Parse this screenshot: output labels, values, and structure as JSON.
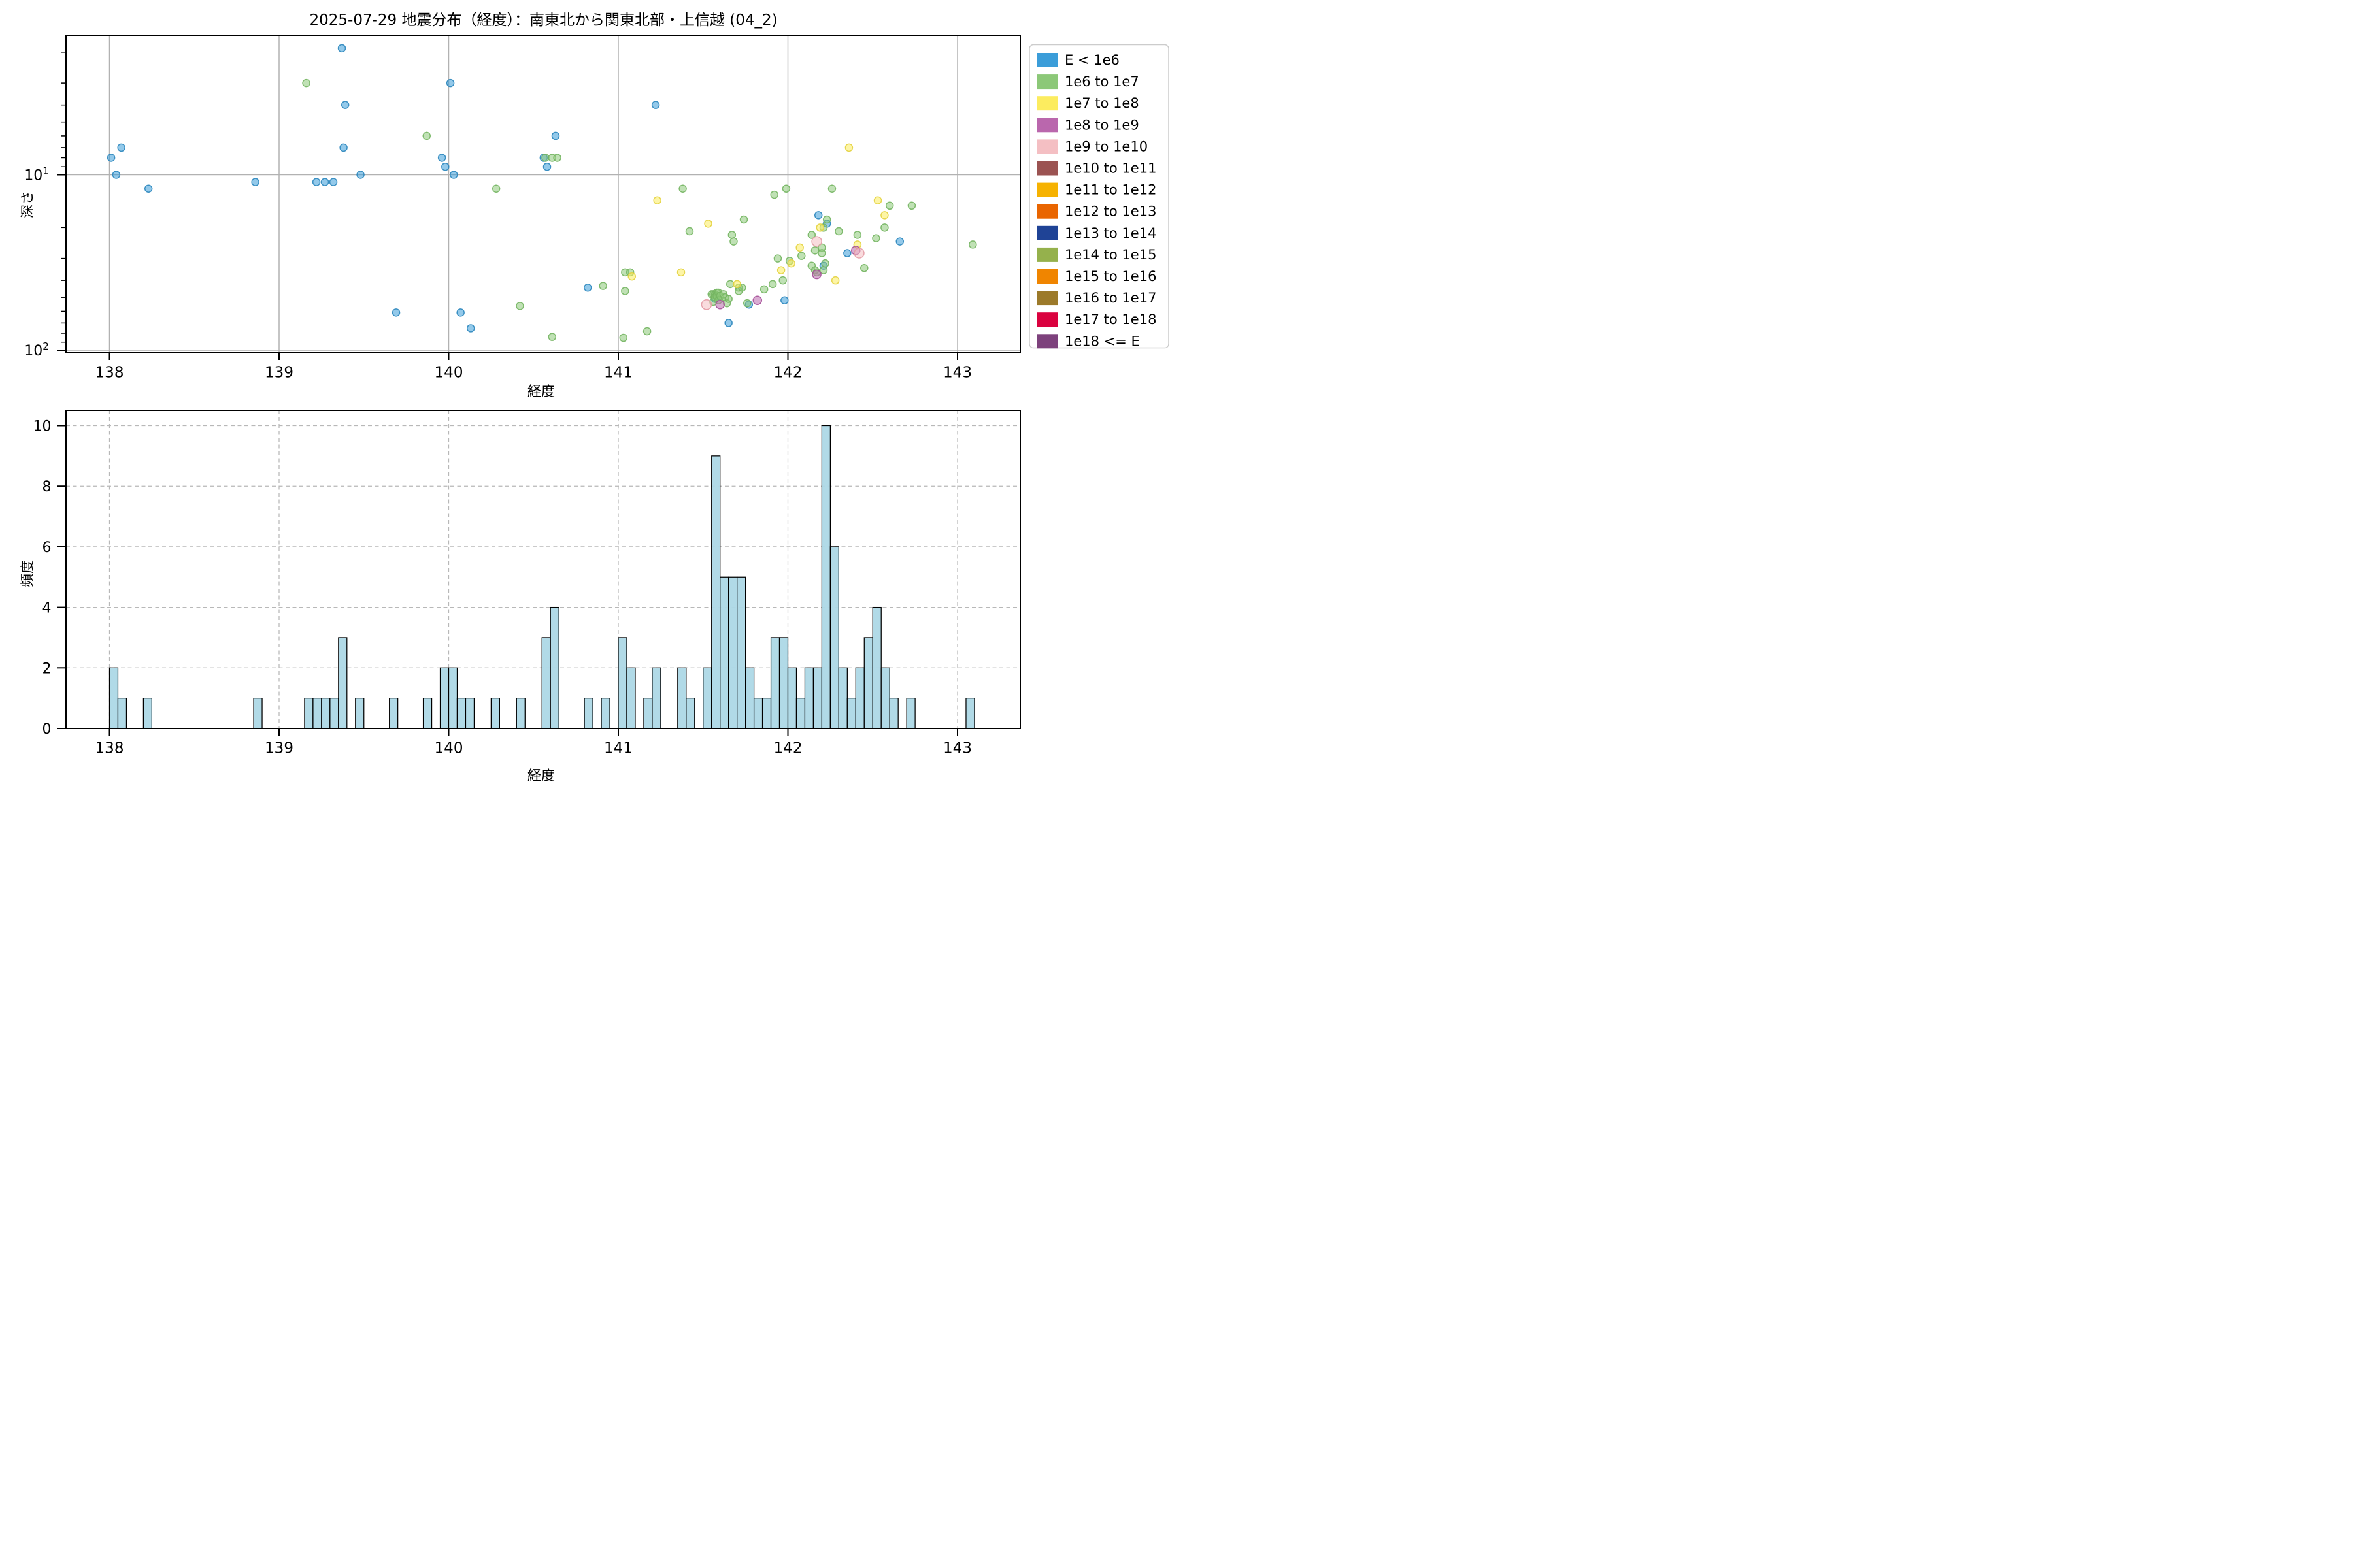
{
  "figure": {
    "title": "2025-07-29 地震分布（経度）：南東北から関東北部・上信越 (04_2)",
    "background": "#ffffff"
  },
  "axes_labels": {
    "longitude": "経度",
    "depth": "深さ",
    "frequency": "頻度"
  },
  "legend": {
    "items": [
      {
        "label": "E < 1e6",
        "color": "#3B9DD9"
      },
      {
        "label": "1e6 to 1e7",
        "color": "#8CC878"
      },
      {
        "label": "1e7 to 1e8",
        "color": "#FCEC5F"
      },
      {
        "label": "1e8 to 1e9",
        "color": "#BA67AD"
      },
      {
        "label": "1e9 to 1e10",
        "color": "#F4BFC3"
      },
      {
        "label": "1e10 to 1e11",
        "color": "#9B5352"
      },
      {
        "label": "1e11 to 1e12",
        "color": "#F6B201"
      },
      {
        "label": "1e12 to 1e13",
        "color": "#E96500"
      },
      {
        "label": "1e13 to 1e14",
        "color": "#1F4396"
      },
      {
        "label": "1e14 to 1e15",
        "color": "#95B14C"
      },
      {
        "label": "1e15 to 1e16",
        "color": "#F08500"
      },
      {
        "label": "1e16 to 1e17",
        "color": "#9C7A2A"
      },
      {
        "label": "1e17 to 1e18",
        "color": "#DA023F"
      },
      {
        "label": "1e18 <= E",
        "color": "#7D417C"
      }
    ]
  },
  "chart_data": [
    {
      "type": "scatter",
      "xlabel": "経度",
      "ylabel": "深さ",
      "x_ticks": [
        138,
        139,
        140,
        141,
        142,
        143
      ],
      "xlim": [
        137.74,
        143.37
      ],
      "y_scale": "log-inverted",
      "ylim_depth": [
        1.6,
        104
      ],
      "y_major_ticks": [
        {
          "base": "10",
          "sup": "1",
          "value": 10
        },
        {
          "base": "10",
          "sup": "2",
          "value": 100
        }
      ],
      "y_minor_ticks": [
        2,
        3,
        4,
        5,
        6,
        7,
        8,
        9,
        20,
        30,
        40,
        50,
        60,
        70,
        80,
        90
      ],
      "grid": "solid",
      "legend_position": "upper right outside",
      "series": [
        {
          "name": "E < 1e6",
          "color": "#3B9DD9",
          "edge": "#2B86BC",
          "r": 11,
          "points": [
            [
              138.01,
              8
            ],
            [
              138.04,
              10
            ],
            [
              138.07,
              7
            ],
            [
              138.23,
              12
            ],
            [
              138.86,
              11
            ],
            [
              139.22,
              11
            ],
            [
              139.27,
              11
            ],
            [
              139.32,
              11
            ],
            [
              139.37,
              1.9
            ],
            [
              139.38,
              7
            ],
            [
              139.39,
              4
            ],
            [
              139.48,
              10
            ],
            [
              139.69,
              61
            ],
            [
              139.96,
              8
            ],
            [
              139.98,
              9
            ],
            [
              140.01,
              3
            ],
            [
              140.03,
              10
            ],
            [
              140.07,
              61
            ],
            [
              140.13,
              75
            ],
            [
              140.56,
              8
            ],
            [
              140.58,
              9
            ],
            [
              140.63,
              6
            ],
            [
              140.82,
              44
            ],
            [
              141.22,
              4
            ],
            [
              141.57,
              51
            ],
            [
              141.65,
              70
            ],
            [
              141.77,
              55
            ],
            [
              141.98,
              52
            ],
            [
              142.18,
              17
            ],
            [
              142.21,
              33
            ],
            [
              142.23,
              19
            ],
            [
              142.35,
              28
            ],
            [
              142.66,
              24
            ]
          ]
        },
        {
          "name": "1e6 to 1e7",
          "color": "#8CC878",
          "edge": "#74B562",
          "r": 11,
          "points": [
            [
              139.16,
              3
            ],
            [
              139.87,
              6
            ],
            [
              140.28,
              12
            ],
            [
              140.42,
              56
            ],
            [
              140.57,
              8
            ],
            [
              140.61,
              8
            ],
            [
              140.61,
              84
            ],
            [
              140.64,
              8
            ],
            [
              140.91,
              43
            ],
            [
              141.03,
              85
            ],
            [
              141.04,
              36
            ],
            [
              141.04,
              46
            ],
            [
              141.07,
              36
            ],
            [
              141.17,
              78
            ],
            [
              141.38,
              12
            ],
            [
              141.42,
              21
            ],
            [
              141.55,
              48
            ],
            [
              141.56,
              48
            ],
            [
              141.56,
              53
            ],
            [
              141.57,
              48
            ],
            [
              141.57,
              50
            ],
            [
              141.58,
              47
            ],
            [
              141.58,
              49
            ],
            [
              141.59,
              47
            ],
            [
              141.59,
              52
            ],
            [
              141.6,
              49
            ],
            [
              141.62,
              48
            ],
            [
              141.63,
              50
            ],
            [
              141.64,
              54
            ],
            [
              141.65,
              51
            ],
            [
              141.66,
              42
            ],
            [
              141.67,
              22
            ],
            [
              141.68,
              24
            ],
            [
              141.71,
              44
            ],
            [
              141.71,
              46
            ],
            [
              141.73,
              44
            ],
            [
              141.74,
              18
            ],
            [
              141.76,
              54
            ],
            [
              141.86,
              45
            ],
            [
              141.91,
              42
            ],
            [
              141.92,
              13
            ],
            [
              141.94,
              30
            ],
            [
              141.97,
              40
            ],
            [
              141.99,
              12
            ],
            [
              142.01,
              31
            ],
            [
              142.08,
              29
            ],
            [
              142.14,
              22
            ],
            [
              142.14,
              33
            ],
            [
              142.16,
              27
            ],
            [
              142.16,
              35
            ],
            [
              142.17,
              36
            ],
            [
              142.2,
              26
            ],
            [
              142.2,
              28
            ],
            [
              142.21,
              20
            ],
            [
              142.21,
              35
            ],
            [
              142.22,
              32
            ],
            [
              142.23,
              18
            ],
            [
              142.26,
              12
            ],
            [
              142.3,
              21
            ],
            [
              142.41,
              22
            ],
            [
              142.45,
              34
            ],
            [
              142.52,
              23
            ],
            [
              142.57,
              20
            ],
            [
              142.6,
              15
            ],
            [
              142.73,
              15
            ],
            [
              143.09,
              25
            ]
          ]
        },
        {
          "name": "1e7 to 1e8",
          "color": "#FCEC5F",
          "edge": "#E3D23F",
          "r": 11,
          "points": [
            [
              141.08,
              38
            ],
            [
              141.23,
              14
            ],
            [
              141.37,
              36
            ],
            [
              141.53,
              19
            ],
            [
              141.7,
              42
            ],
            [
              141.96,
              35
            ],
            [
              142.02,
              32
            ],
            [
              142.07,
              26
            ],
            [
              142.19,
              20
            ],
            [
              142.28,
              40
            ],
            [
              142.36,
              7
            ],
            [
              142.41,
              25
            ],
            [
              142.53,
              14
            ],
            [
              142.57,
              17
            ]
          ]
        },
        {
          "name": "1e8 to 1e9",
          "color": "#BA67AD",
          "edge": "#A44F97",
          "r": 13,
          "points": [
            [
              141.6,
              55
            ],
            [
              141.82,
              52
            ],
            [
              142.17,
              37
            ],
            [
              142.4,
              27
            ]
          ]
        },
        {
          "name": "1e9 to 1e10",
          "color": "#F4BFC3",
          "edge": "#E39AA4",
          "r": 15,
          "points": [
            [
              141.52,
              55
            ],
            [
              142.17,
              24
            ],
            [
              142.42,
              28
            ]
          ]
        }
      ]
    },
    {
      "type": "histogram",
      "xlabel": "経度",
      "ylabel": "頻度",
      "x_ticks": [
        138,
        139,
        140,
        141,
        142,
        143
      ],
      "xlim": [
        137.74,
        143.37
      ],
      "y_ticks": [
        0,
        2,
        4,
        6,
        8,
        10
      ],
      "ylim": [
        0,
        10.5
      ],
      "grid": "dashed",
      "bin_width": 0.05,
      "bar_color": "#ADD8E6",
      "bar_edge": "#000000",
      "bars": [
        [
          138.0,
          2
        ],
        [
          138.05,
          1
        ],
        [
          138.2,
          1
        ],
        [
          138.85,
          1
        ],
        [
          139.15,
          1
        ],
        [
          139.2,
          1
        ],
        [
          139.25,
          1
        ],
        [
          139.3,
          1
        ],
        [
          139.35,
          3
        ],
        [
          139.45,
          1
        ],
        [
          139.65,
          1
        ],
        [
          139.85,
          1
        ],
        [
          139.95,
          2
        ],
        [
          140.0,
          2
        ],
        [
          140.05,
          1
        ],
        [
          140.1,
          1
        ],
        [
          140.25,
          1
        ],
        [
          140.4,
          1
        ],
        [
          140.55,
          3
        ],
        [
          140.6,
          4
        ],
        [
          140.8,
          1
        ],
        [
          140.9,
          1
        ],
        [
          141.0,
          3
        ],
        [
          141.05,
          2
        ],
        [
          141.15,
          1
        ],
        [
          141.2,
          2
        ],
        [
          141.35,
          2
        ],
        [
          141.4,
          1
        ],
        [
          141.5,
          2
        ],
        [
          141.55,
          9
        ],
        [
          141.6,
          5
        ],
        [
          141.65,
          5
        ],
        [
          141.7,
          5
        ],
        [
          141.75,
          2
        ],
        [
          141.8,
          1
        ],
        [
          141.85,
          1
        ],
        [
          141.9,
          3
        ],
        [
          141.95,
          3
        ],
        [
          142.0,
          2
        ],
        [
          142.05,
          1
        ],
        [
          142.1,
          2
        ],
        [
          142.15,
          2
        ],
        [
          142.2,
          10
        ],
        [
          142.25,
          6
        ],
        [
          142.3,
          2
        ],
        [
          142.35,
          1
        ],
        [
          142.4,
          2
        ],
        [
          142.45,
          3
        ],
        [
          142.5,
          4
        ],
        [
          142.55,
          2
        ],
        [
          142.6,
          1
        ],
        [
          142.7,
          1
        ],
        [
          143.05,
          1
        ]
      ]
    }
  ]
}
